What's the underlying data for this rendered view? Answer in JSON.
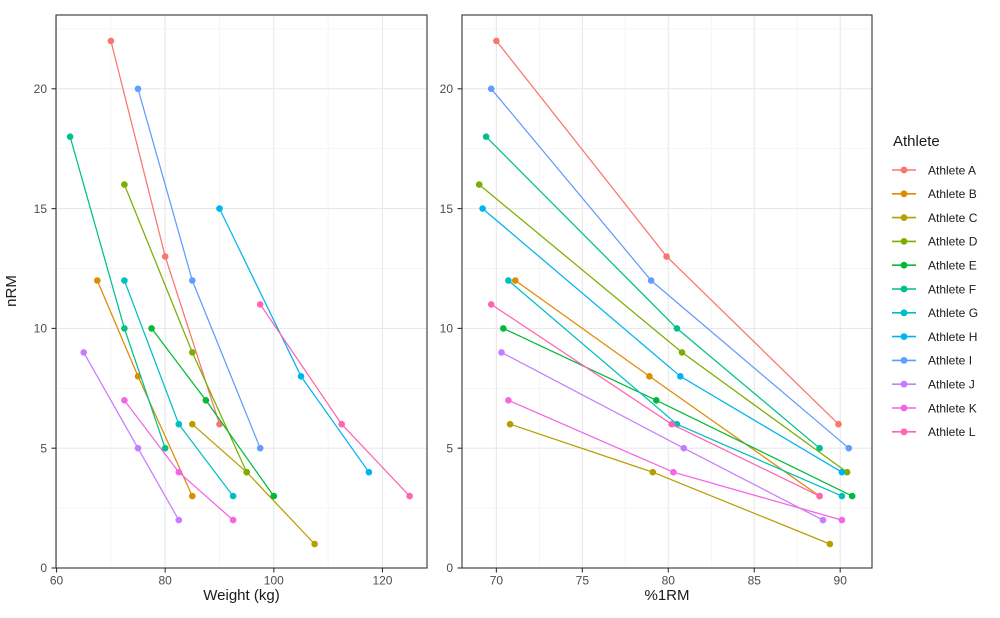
{
  "figure": {
    "background": "#FFFFFF",
    "panel_border_color": "#333333",
    "grid_major_color": "#E8E8E8",
    "grid_minor_color": "#F2F2F2",
    "tick_color": "#333333",
    "axis_text_color": "#4D4D4D",
    "axis_title_color": "#1A1A1A"
  },
  "chart_data": [
    {
      "type": "line",
      "panel": "weight",
      "title": "",
      "xlabel": "Weight (kg)",
      "ylabel": "nRM",
      "xlim": [
        59.9,
        128.2
      ],
      "ylim": [
        0,
        23.08
      ],
      "x_major_ticks": [
        60,
        80,
        100,
        120
      ],
      "x_minor_ticks": [
        70,
        90,
        110
      ],
      "y_major_ticks": [
        0,
        5,
        10,
        15,
        20
      ],
      "y_minor_ticks": [
        2.5,
        7.5,
        12.5,
        17.5,
        22.5
      ],
      "grid": true,
      "series": [
        {
          "name": "Athlete A",
          "color": "#F8766D",
          "points": [
            [
              70,
              22
            ],
            [
              80,
              13
            ],
            [
              90,
              6
            ]
          ]
        },
        {
          "name": "Athlete B",
          "color": "#DE8C00",
          "points": [
            [
              67.5,
              12
            ],
            [
              75,
              8
            ],
            [
              85,
              3
            ]
          ]
        },
        {
          "name": "Athlete C",
          "color": "#B79F00",
          "points": [
            [
              85,
              6
            ],
            [
              95,
              4
            ],
            [
              107.5,
              1
            ]
          ]
        },
        {
          "name": "Athlete D",
          "color": "#7CAE00",
          "points": [
            [
              72.5,
              16
            ],
            [
              85,
              9
            ],
            [
              95,
              4
            ]
          ]
        },
        {
          "name": "Athlete E",
          "color": "#00BA38",
          "points": [
            [
              77.5,
              10
            ],
            [
              87.5,
              7
            ],
            [
              100,
              3
            ]
          ]
        },
        {
          "name": "Athlete F",
          "color": "#00C08B",
          "points": [
            [
              62.5,
              18
            ],
            [
              72.5,
              10
            ],
            [
              80,
              5
            ]
          ]
        },
        {
          "name": "Athlete G",
          "color": "#00BFC4",
          "points": [
            [
              72.5,
              12
            ],
            [
              82.5,
              6
            ],
            [
              92.5,
              3
            ]
          ]
        },
        {
          "name": "Athlete H",
          "color": "#00B4F0",
          "points": [
            [
              90,
              15
            ],
            [
              105,
              8
            ],
            [
              117.5,
              4
            ]
          ]
        },
        {
          "name": "Athlete I",
          "color": "#619CFF",
          "points": [
            [
              75,
              20
            ],
            [
              85,
              12
            ],
            [
              97.5,
              5
            ]
          ]
        },
        {
          "name": "Athlete J",
          "color": "#C77CFF",
          "points": [
            [
              65,
              9
            ],
            [
              75,
              5
            ],
            [
              82.5,
              2
            ]
          ]
        },
        {
          "name": "Athlete K",
          "color": "#F564E3",
          "points": [
            [
              72.5,
              7
            ],
            [
              82.5,
              4
            ],
            [
              92.5,
              2
            ]
          ]
        },
        {
          "name": "Athlete L",
          "color": "#FF64B0",
          "points": [
            [
              97.5,
              11
            ],
            [
              112.5,
              6
            ],
            [
              125,
              3
            ]
          ]
        }
      ]
    },
    {
      "type": "line",
      "panel": "pct1rm",
      "title": "",
      "xlabel": "%1RM",
      "ylabel": "",
      "xlim": [
        68,
        91.85
      ],
      "ylim": [
        0,
        23.08
      ],
      "x_major_ticks": [
        70,
        75,
        80,
        85,
        90
      ],
      "x_minor_ticks": [
        72.5,
        77.5,
        82.5,
        87.5
      ],
      "y_major_ticks": [
        0,
        5,
        10,
        15,
        20
      ],
      "y_minor_ticks": [
        2.5,
        7.5,
        12.5,
        17.5,
        22.5
      ],
      "grid": true,
      "series": [
        {
          "name": "Athlete A",
          "color": "#F8766D",
          "points": [
            [
              70,
              22
            ],
            [
              79.9,
              13
            ],
            [
              89.9,
              6
            ]
          ]
        },
        {
          "name": "Athlete B",
          "color": "#DE8C00",
          "points": [
            [
              71.1,
              12
            ],
            [
              78.9,
              8
            ],
            [
              88.8,
              3
            ]
          ]
        },
        {
          "name": "Athlete C",
          "color": "#B79F00",
          "points": [
            [
              70.8,
              6
            ],
            [
              79.1,
              4
            ],
            [
              89.4,
              1
            ]
          ]
        },
        {
          "name": "Athlete D",
          "color": "#7CAE00",
          "points": [
            [
              69,
              16
            ],
            [
              80.8,
              9
            ],
            [
              90.4,
              4
            ]
          ]
        },
        {
          "name": "Athlete E",
          "color": "#00BA38",
          "points": [
            [
              70.4,
              10
            ],
            [
              79.3,
              7
            ],
            [
              90.7,
              3
            ]
          ]
        },
        {
          "name": "Athlete F",
          "color": "#00C08B",
          "points": [
            [
              69.4,
              18
            ],
            [
              80.5,
              10
            ],
            [
              88.8,
              5
            ]
          ]
        },
        {
          "name": "Athlete G",
          "color": "#00BFC4",
          "points": [
            [
              70.7,
              12
            ],
            [
              80.5,
              6
            ],
            [
              90.1,
              3
            ]
          ]
        },
        {
          "name": "Athlete H",
          "color": "#00B4F0",
          "points": [
            [
              69.2,
              15
            ],
            [
              80.7,
              8
            ],
            [
              90.1,
              4
            ]
          ]
        },
        {
          "name": "Athlete I",
          "color": "#619CFF",
          "points": [
            [
              69.7,
              20
            ],
            [
              79,
              12
            ],
            [
              90.5,
              5
            ]
          ]
        },
        {
          "name": "Athlete J",
          "color": "#C77CFF",
          "points": [
            [
              70.3,
              9
            ],
            [
              80.9,
              5
            ],
            [
              89,
              2
            ]
          ]
        },
        {
          "name": "Athlete K",
          "color": "#F564E3",
          "points": [
            [
              70.7,
              7
            ],
            [
              80.3,
              4
            ],
            [
              90.1,
              2
            ]
          ]
        },
        {
          "name": "Athlete L",
          "color": "#FF64B0",
          "points": [
            [
              69.7,
              11
            ],
            [
              80.2,
              6
            ],
            [
              88.8,
              3
            ]
          ]
        }
      ]
    }
  ],
  "legend": {
    "title": "Athlete",
    "position": "right",
    "entries": [
      {
        "label": "Athlete A",
        "color": "#F8766D"
      },
      {
        "label": "Athlete B",
        "color": "#DE8C00"
      },
      {
        "label": "Athlete C",
        "color": "#B79F00"
      },
      {
        "label": "Athlete D",
        "color": "#7CAE00"
      },
      {
        "label": "Athlete E",
        "color": "#00BA38"
      },
      {
        "label": "Athlete F",
        "color": "#00C08B"
      },
      {
        "label": "Athlete G",
        "color": "#00BFC4"
      },
      {
        "label": "Athlete H",
        "color": "#00B4F0"
      },
      {
        "label": "Athlete I",
        "color": "#619CFF"
      },
      {
        "label": "Athlete J",
        "color": "#C77CFF"
      },
      {
        "label": "Athlete K",
        "color": "#F564E3"
      },
      {
        "label": "Athlete L",
        "color": "#FF64B0"
      }
    ]
  }
}
